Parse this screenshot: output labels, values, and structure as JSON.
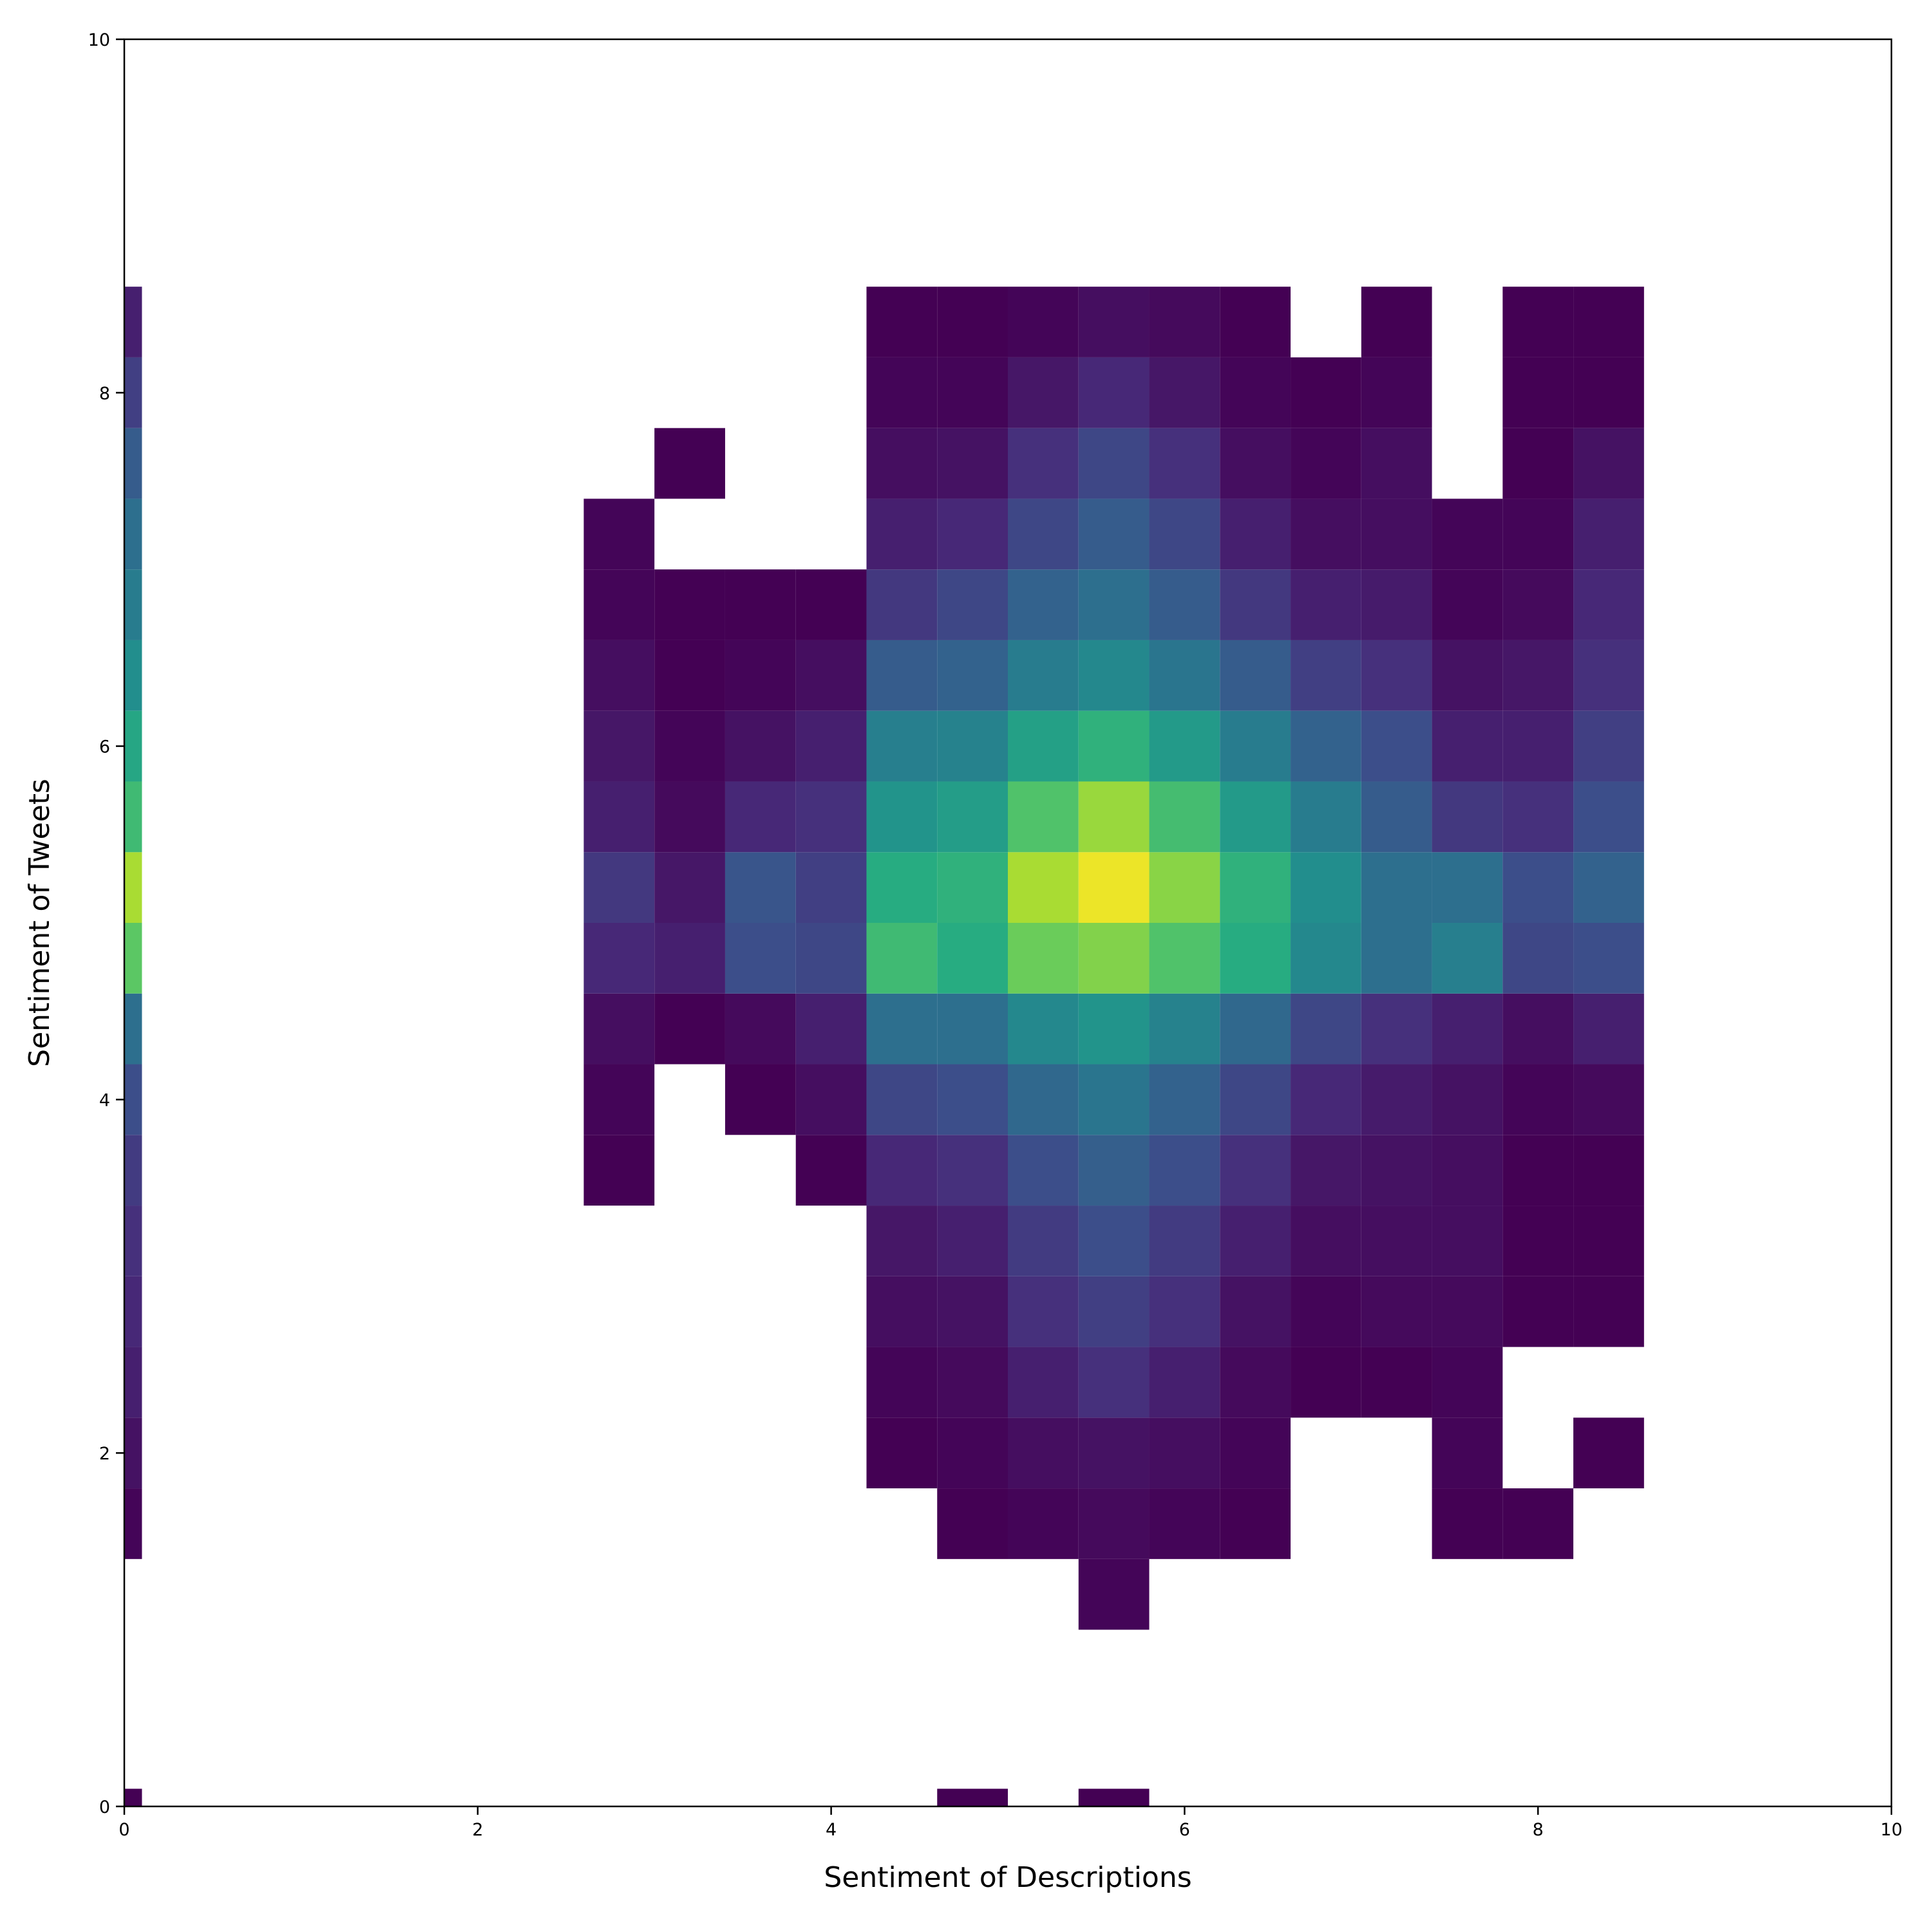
{
  "chart_data": {
    "type": "hist2d",
    "xlabel": "Sentiment of Descriptions",
    "ylabel": "Sentiment of Tweets",
    "xlim": [
      0,
      10
    ],
    "ylim": [
      0,
      10
    ],
    "xticks": [
      0,
      2,
      4,
      6,
      8,
      10
    ],
    "yticks": [
      0,
      2,
      4,
      6,
      8,
      10
    ],
    "colormap": "viridis",
    "zlim": [
      1,
      80
    ],
    "xbins": [
      0,
      0.1,
      2.6,
      3.0,
      3.4,
      3.8,
      4.2,
      4.6,
      5.0,
      5.4,
      5.8,
      6.2,
      6.6,
      7.0,
      7.4,
      7.8,
      8.2,
      8.6
    ],
    "ybins": [
      0,
      0.1,
      1.0,
      1.4,
      1.8,
      2.2,
      2.6,
      3.0,
      3.4,
      3.8,
      4.2,
      4.6,
      5.0,
      5.4,
      5.8,
      6.2,
      6.6,
      7.0,
      7.4,
      7.8,
      8.2,
      8.6
    ],
    "counts": [
      [
        1,
        null,
        null,
        null,
        null,
        null,
        null,
        1,
        null,
        1,
        null,
        null,
        null,
        null,
        null,
        null,
        null
      ],
      [
        null,
        null,
        null,
        null,
        null,
        null,
        null,
        null,
        null,
        null,
        null,
        null,
        null,
        null,
        null,
        null,
        null
      ],
      [
        null,
        null,
        null,
        null,
        null,
        null,
        null,
        null,
        null,
        2,
        null,
        null,
        null,
        null,
        null,
        null,
        null
      ],
      [
        2,
        null,
        null,
        null,
        null,
        null,
        null,
        1,
        2,
        3,
        2,
        1,
        null,
        null,
        1,
        1,
        null
      ],
      [
        5,
        null,
        null,
        null,
        null,
        null,
        1,
        2,
        4,
        5,
        4,
        2,
        null,
        null,
        2,
        null,
        1
      ],
      [
        8,
        null,
        null,
        null,
        null,
        null,
        2,
        3,
        8,
        12,
        8,
        3,
        1,
        1,
        2,
        null,
        null
      ],
      [
        10,
        null,
        null,
        null,
        null,
        null,
        4,
        5,
        12,
        16,
        12,
        5,
        2,
        3,
        3,
        1,
        1
      ],
      [
        12,
        null,
        null,
        null,
        null,
        null,
        6,
        8,
        15,
        20,
        15,
        8,
        4,
        4,
        4,
        1,
        1
      ],
      [
        15,
        null,
        1,
        null,
        null,
        1,
        10,
        12,
        20,
        25,
        20,
        12,
        6,
        5,
        4,
        1,
        1
      ],
      [
        20,
        null,
        2,
        null,
        1,
        4,
        18,
        20,
        28,
        32,
        26,
        18,
        10,
        7,
        5,
        2,
        3
      ],
      [
        30,
        null,
        4,
        1,
        3,
        8,
        30,
        30,
        38,
        42,
        36,
        28,
        18,
        12,
        8,
        4,
        8
      ],
      [
        60,
        null,
        10,
        8,
        20,
        18,
        55,
        50,
        62,
        65,
        58,
        50,
        38,
        30,
        35,
        18,
        20
      ],
      [
        70,
        null,
        14,
        6,
        22,
        16,
        50,
        52,
        70,
        78,
        66,
        52,
        40,
        30,
        30,
        20,
        26
      ],
      [
        55,
        null,
        8,
        3,
        10,
        12,
        42,
        45,
        58,
        68,
        56,
        44,
        34,
        24,
        14,
        12,
        20
      ],
      [
        48,
        null,
        6,
        2,
        5,
        8,
        35,
        36,
        46,
        52,
        44,
        34,
        26,
        20,
        8,
        8,
        16
      ],
      [
        40,
        null,
        4,
        1,
        2,
        4,
        24,
        26,
        34,
        38,
        32,
        24,
        16,
        12,
        5,
        6,
        12
      ],
      [
        34,
        null,
        2,
        1,
        1,
        1,
        14,
        18,
        26,
        30,
        24,
        14,
        8,
        7,
        2,
        3,
        10
      ],
      [
        30,
        null,
        2,
        null,
        null,
        null,
        8,
        10,
        18,
        24,
        18,
        8,
        4,
        4,
        2,
        2,
        8
      ],
      [
        24,
        null,
        null,
        1,
        null,
        null,
        4,
        5,
        12,
        18,
        12,
        4,
        2,
        4,
        null,
        1,
        5
      ],
      [
        16,
        null,
        null,
        null,
        null,
        null,
        2,
        2,
        6,
        10,
        6,
        2,
        1,
        2,
        null,
        1,
        1
      ],
      [
        8,
        null,
        null,
        null,
        null,
        null,
        1,
        1,
        2,
        4,
        3,
        1,
        null,
        1,
        null,
        1,
        1
      ]
    ]
  }
}
